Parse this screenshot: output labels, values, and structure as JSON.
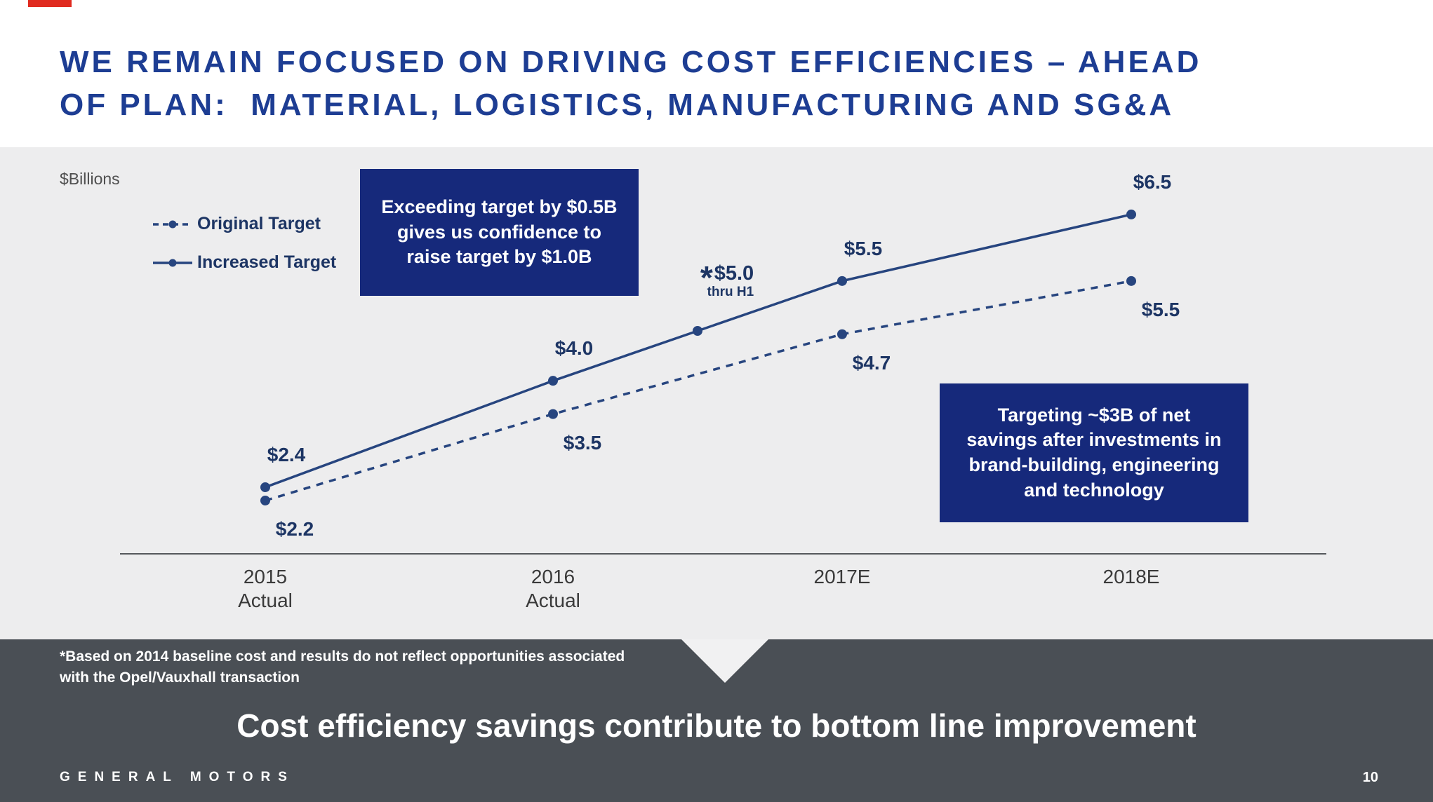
{
  "slide": {
    "title_lines": [
      "WE REMAIN FOCUSED ON DRIVING COST EFFICIENCIES – AHEAD",
      "OF PLAN:  MATERIAL, LOGISTICS, MANUFACTURING AND SG&A"
    ],
    "headline": "Cost efficiency savings contribute to bottom line improvement",
    "footnote_lines": [
      "*Based on 2014 baseline cost and results do not reflect opportunities associated",
      "with the Opel/Vauxhall transaction"
    ],
    "brand": "GENERAL MOTORS",
    "page_number": "10"
  },
  "callouts": {
    "top_lines": [
      "Exceeding target by $0.5B",
      "gives us confidence to",
      "raise target by $1.0B"
    ],
    "bottom_lines": [
      "Targeting ~$3B of net",
      "savings after investments in",
      "brand-building, engineering",
      "and technology"
    ]
  },
  "colors": {
    "title_blue": "#1d3d93",
    "box_navy": "#16297b",
    "line_navy": "#27457f",
    "label_navy": "#1d3564",
    "chart_bg": "#ededee",
    "footer_gray": "#4a4f55",
    "accent_red": "#e02b20"
  },
  "chart_data": {
    "type": "line",
    "title": "",
    "ylabel": "$Billions",
    "xlabel": "",
    "categories": [
      [
        "2015",
        "Actual"
      ],
      [
        "2016",
        "Actual"
      ],
      [
        "2017E"
      ],
      [
        "2018E"
      ]
    ],
    "series": [
      {
        "name": "Original Target",
        "line_style": "dashed",
        "values": [
          2.2,
          3.5,
          4.7,
          5.5
        ],
        "point_labels": [
          "$2.2",
          "$3.5",
          "$4.7",
          "$5.5"
        ]
      },
      {
        "name": "Increased Target",
        "line_style": "solid",
        "values": [
          2.4,
          4.0,
          5.5,
          6.5
        ],
        "point_labels": [
          "$2.4",
          "$4.0",
          "$5.5",
          "$6.5"
        ],
        "interim_annotation": {
          "position": "midway between 2016 Actual and 2017E",
          "star": "*",
          "label": "$5.0",
          "sublabel": "thru H1"
        }
      }
    ],
    "ylim": [
      1.4,
      7.5
    ],
    "grid": false,
    "legend_position": "top-left"
  }
}
